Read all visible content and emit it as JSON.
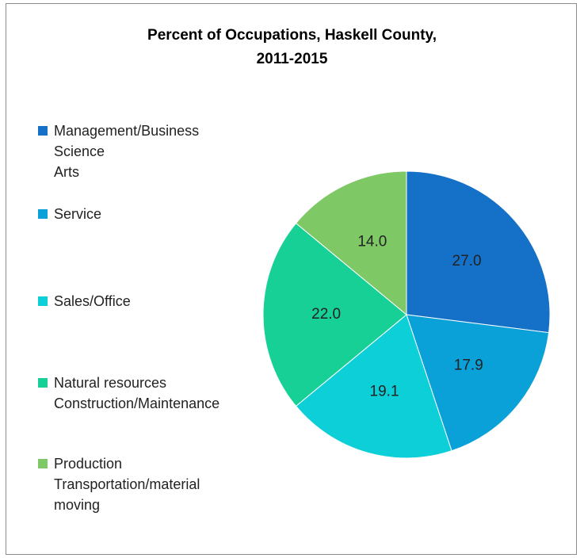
{
  "chart_data": {
    "type": "pie",
    "title": "Percent of Occupations, Haskell County,\n2011-2015",
    "categories": [
      "Management/Business\nScience\nArts",
      "Service",
      "Sales/Office",
      "Natural resources\nConstruction/Maintenance",
      "Production\nTransportation/material\nmoving"
    ],
    "values": [
      27.0,
      17.9,
      19.1,
      22.0,
      14.0
    ],
    "value_labels": [
      "27.0",
      "17.9",
      "19.1",
      "22.0",
      "14.0"
    ],
    "colors": [
      "#1570c8",
      "#0aa0d8",
      "#0ccfd8",
      "#17d096",
      "#7ec865"
    ],
    "legend": "left"
  }
}
